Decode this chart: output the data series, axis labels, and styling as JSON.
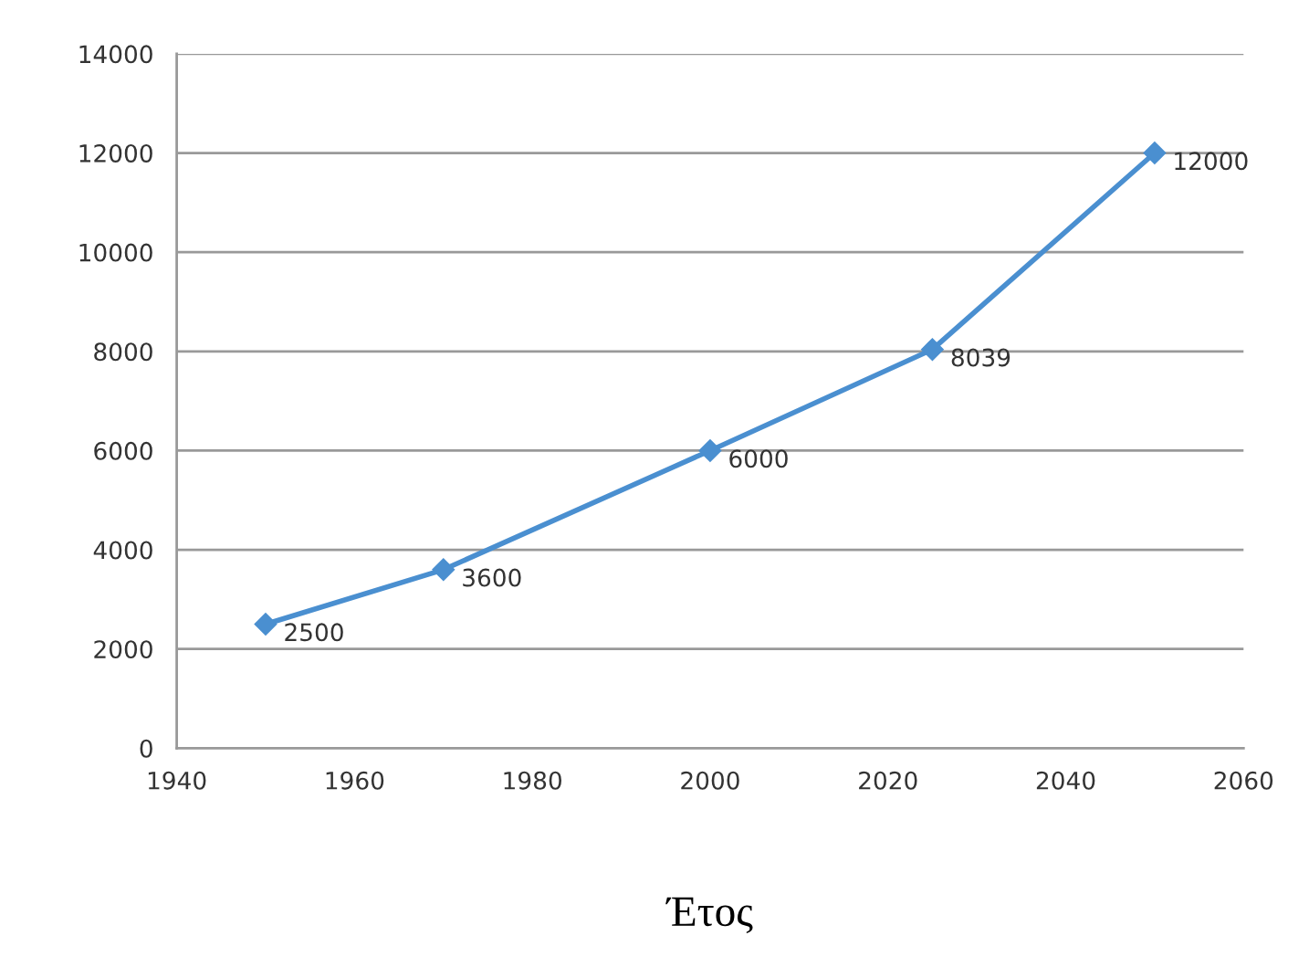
{
  "chart_data": {
    "type": "line",
    "xlabel": "Έτος",
    "x": [
      1950,
      1970,
      2000,
      2025,
      2050
    ],
    "series": [
      {
        "color": "#4a8fd0",
        "values": [
          2500,
          3600,
          6000,
          8039,
          12000
        ]
      }
    ],
    "xlim": [
      1940,
      2060
    ],
    "xticks": [
      1940,
      1960,
      1980,
      2000,
      2020,
      2040,
      2060
    ],
    "ylim": [
      0,
      14000
    ],
    "yticks": [
      0,
      2000,
      4000,
      6000,
      8000,
      10000,
      12000,
      14000
    ],
    "grid": "y",
    "marker": "diamond",
    "line_style": "solid",
    "data_labels": true
  }
}
